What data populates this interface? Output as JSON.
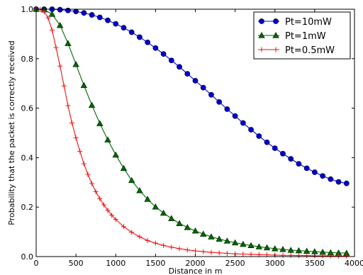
{
  "chart_data": {
    "type": "line",
    "xlabel": "Distance in m",
    "ylabel": "Probability that the packet is correctly received",
    "xlim": [
      0,
      4000
    ],
    "ylim": [
      0.0,
      1.0
    ],
    "xticks": [
      "0",
      "500",
      "1000",
      "1500",
      "2000",
      "2500",
      "3000",
      "3500",
      "4000"
    ],
    "yticks": [
      "0.0",
      "0.2",
      "0.4",
      "0.6",
      "0.8",
      "1.0"
    ],
    "grid": false,
    "legend_position": "top-right",
    "series": [
      {
        "name": "Pt=10mW",
        "color": "#0000cc",
        "marker": "circle",
        "x": [
          0,
          100,
          200,
          300,
          400,
          500,
          600,
          700,
          800,
          900,
          1000,
          1100,
          1200,
          1300,
          1400,
          1500,
          1600,
          1700,
          1800,
          1900,
          2000,
          2100,
          2200,
          2300,
          2400,
          2500,
          2600,
          2700,
          2800,
          2900,
          3000,
          3100,
          3200,
          3300,
          3400,
          3500,
          3600,
          3700,
          3800,
          3900
        ],
        "y": [
          1.0,
          1.0,
          1.0,
          0.998,
          0.995,
          0.991,
          0.985,
          0.977,
          0.967,
          0.955,
          0.941,
          0.925,
          0.907,
          0.887,
          0.866,
          0.843,
          0.819,
          0.793,
          0.767,
          0.739,
          0.711,
          0.683,
          0.654,
          0.625,
          0.596,
          0.568,
          0.54,
          0.513,
          0.487,
          0.462,
          0.438,
          0.416,
          0.395,
          0.375,
          0.357,
          0.341,
          0.326,
          0.313,
          0.302,
          0.296
        ]
      },
      {
        "name": "Pt=1mW",
        "color": "#006600",
        "marker": "triangle",
        "x": [
          0,
          100,
          200,
          300,
          400,
          500,
          600,
          700,
          800,
          900,
          1000,
          1100,
          1200,
          1300,
          1400,
          1500,
          1600,
          1700,
          1800,
          1900,
          2000,
          2100,
          2200,
          2300,
          2400,
          2500,
          2600,
          2700,
          2800,
          2900,
          3000,
          3100,
          3200,
          3300,
          3400,
          3500,
          3600,
          3700,
          3800,
          3900
        ],
        "y": [
          1.0,
          0.998,
          0.98,
          0.935,
          0.862,
          0.777,
          0.692,
          0.612,
          0.538,
          0.472,
          0.411,
          0.357,
          0.308,
          0.267,
          0.232,
          0.201,
          0.176,
          0.154,
          0.134,
          0.118,
          0.104,
          0.091,
          0.08,
          0.071,
          0.063,
          0.056,
          0.05,
          0.045,
          0.04,
          0.036,
          0.032,
          0.029,
          0.026,
          0.024,
          0.022,
          0.02,
          0.018,
          0.016,
          0.015,
          0.014
        ]
      },
      {
        "name": "Pt=0.5mW",
        "color": "#ee1111",
        "marker": "plus",
        "x": [
          0,
          50,
          100,
          150,
          200,
          250,
          300,
          350,
          400,
          450,
          500,
          550,
          600,
          650,
          700,
          750,
          800,
          850,
          900,
          950,
          1000,
          1100,
          1200,
          1300,
          1400,
          1500,
          1600,
          1700,
          1800,
          1900,
          2000,
          2100,
          2200,
          2300,
          2400,
          2500,
          2600,
          2700,
          2800,
          2900,
          3000,
          3100,
          3200,
          3300,
          3400,
          3500,
          3600,
          3700,
          3800,
          3900
        ],
        "y": [
          1.0,
          0.999,
          0.99,
          0.965,
          0.915,
          0.845,
          0.77,
          0.69,
          0.61,
          0.54,
          0.48,
          0.425,
          0.375,
          0.332,
          0.295,
          0.262,
          0.234,
          0.209,
          0.187,
          0.167,
          0.15,
          0.121,
          0.098,
          0.08,
          0.065,
          0.054,
          0.045,
          0.038,
          0.032,
          0.027,
          0.023,
          0.02,
          0.017,
          0.015,
          0.013,
          0.011,
          0.01,
          0.009,
          0.008,
          0.007,
          0.006,
          0.005,
          0.005,
          0.004,
          0.004,
          0.003,
          0.003,
          0.003,
          0.002,
          0.002
        ]
      }
    ]
  }
}
